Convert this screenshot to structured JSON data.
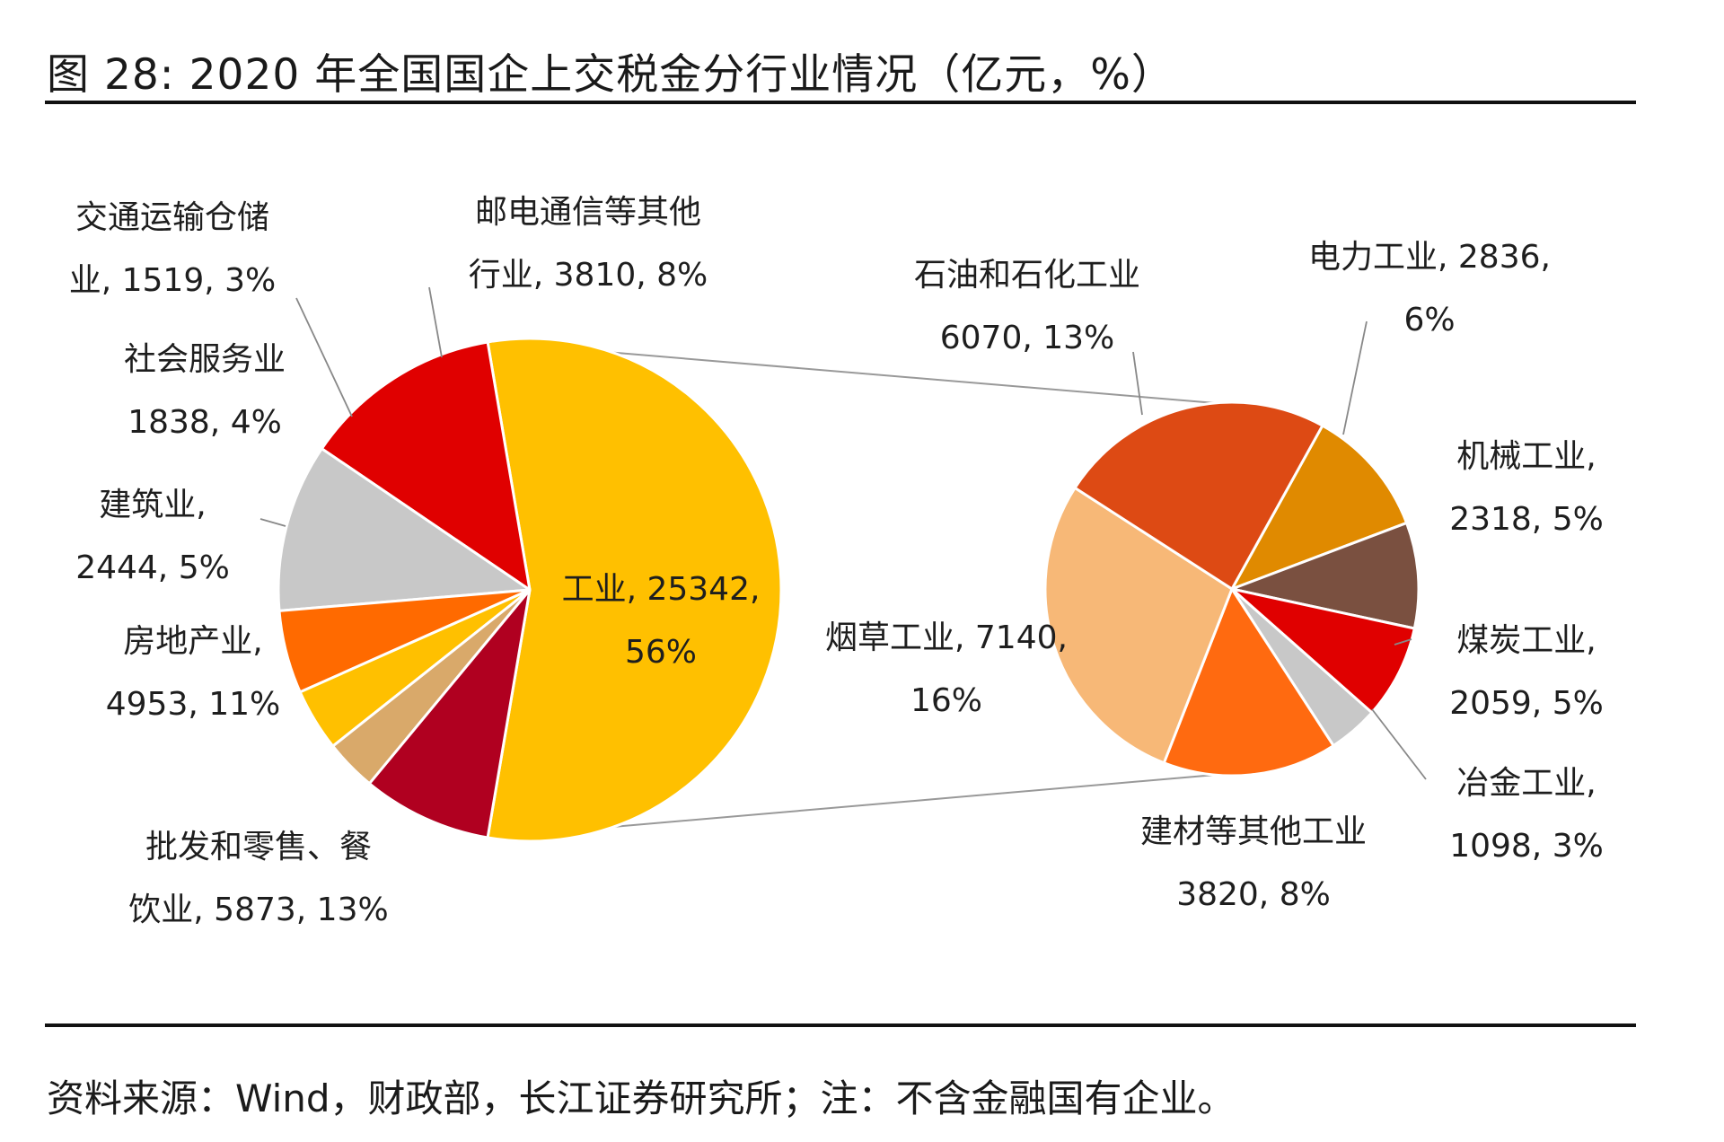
{
  "title": {
    "figure_no": "图",
    "number": "28:",
    "text": "2020 年全国国企上交税金分行业情况（亿元，%）"
  },
  "source_note": "资料来源：Wind，财政部，长江证券研究所；注：不含金融国有企业。",
  "chart_data": [
    {
      "type": "pie",
      "title": "",
      "slices": [
        {
          "label_lines": [
            "工业, 25342,",
            "56%"
          ],
          "value": 25342,
          "percent": 56,
          "color": "#FFC000"
        },
        {
          "label_lines": [
            "批发和零售、餐",
            "饮业, 5873, 13%"
          ],
          "value": 5873,
          "percent": 13,
          "color": "#E00000"
        },
        {
          "label_lines": [
            "房地产业,",
            "4953, 11%"
          ],
          "value": 4953,
          "percent": 11,
          "color": "#C8C8C8"
        },
        {
          "label_lines": [
            "建筑业,",
            "2444, 5%"
          ],
          "value": 2444,
          "percent": 5,
          "color": "#FF6A00"
        },
        {
          "label_lines": [
            "社会服务业",
            "1838, 4%"
          ],
          "value": 1838,
          "percent": 4,
          "color": "#FFC000"
        },
        {
          "label_lines": [
            "交通运输仓储",
            "业, 1519, 3%"
          ],
          "value": 1519,
          "percent": 3,
          "color": "#D9A96A"
        },
        {
          "label_lines": [
            "邮电通信等其他",
            "行业, 3810, 8%"
          ],
          "value": 3810,
          "percent": 8,
          "color": "#B00020"
        }
      ]
    },
    {
      "type": "pie",
      "title": "",
      "slices": [
        {
          "label_lines": [
            "电力工业, 2836,",
            "6%"
          ],
          "value": 2836,
          "percent": 6,
          "color": "#E08A00"
        },
        {
          "label_lines": [
            "机械工业,",
            "2318, 5%"
          ],
          "value": 2318,
          "percent": 5,
          "color": "#7A5040"
        },
        {
          "label_lines": [
            "煤炭工业,",
            "2059, 5%"
          ],
          "value": 2059,
          "percent": 5,
          "color": "#E00000"
        },
        {
          "label_lines": [
            "冶金工业,",
            "1098, 3%"
          ],
          "value": 1098,
          "percent": 3,
          "color": "#C8C8C8"
        },
        {
          "label_lines": [
            "建材等其他工业",
            "3820, 8%"
          ],
          "value": 3820,
          "percent": 8,
          "color": "#FF6A10"
        },
        {
          "label_lines": [
            "烟草工业, 7140,",
            "16%"
          ],
          "value": 7140,
          "percent": 16,
          "color": "#F7B877"
        },
        {
          "label_lines": [
            "石油和石化工业",
            "6070, 13%"
          ],
          "value": 6070,
          "percent": 13,
          "color": "#DD4A14"
        }
      ]
    }
  ]
}
